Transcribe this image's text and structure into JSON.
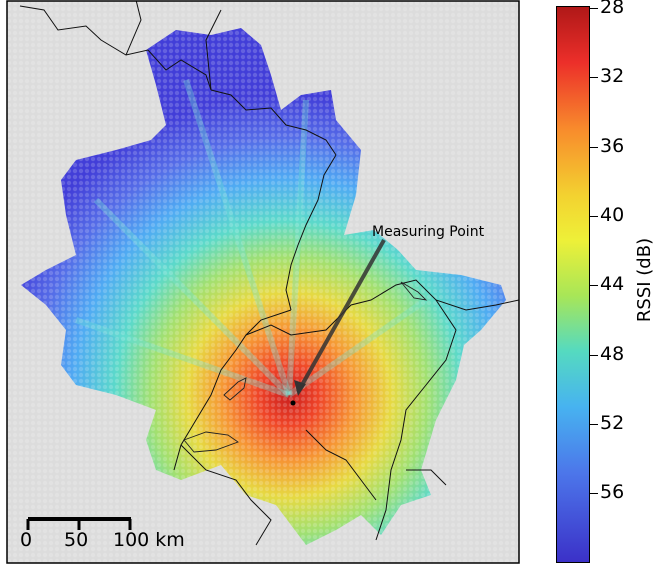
{
  "map": {
    "annotation": "Measuring Point",
    "scalebar": {
      "ticks": [
        "0",
        "50",
        "100 km"
      ]
    },
    "background_color": "#dcdcdc",
    "border_color": "#000000"
  },
  "colorbar": {
    "label": "RSSI (dB)",
    "ticks": [
      "28",
      "32",
      "36",
      "40",
      "44",
      "48",
      "52",
      "56"
    ],
    "colormap": "jet"
  }
}
